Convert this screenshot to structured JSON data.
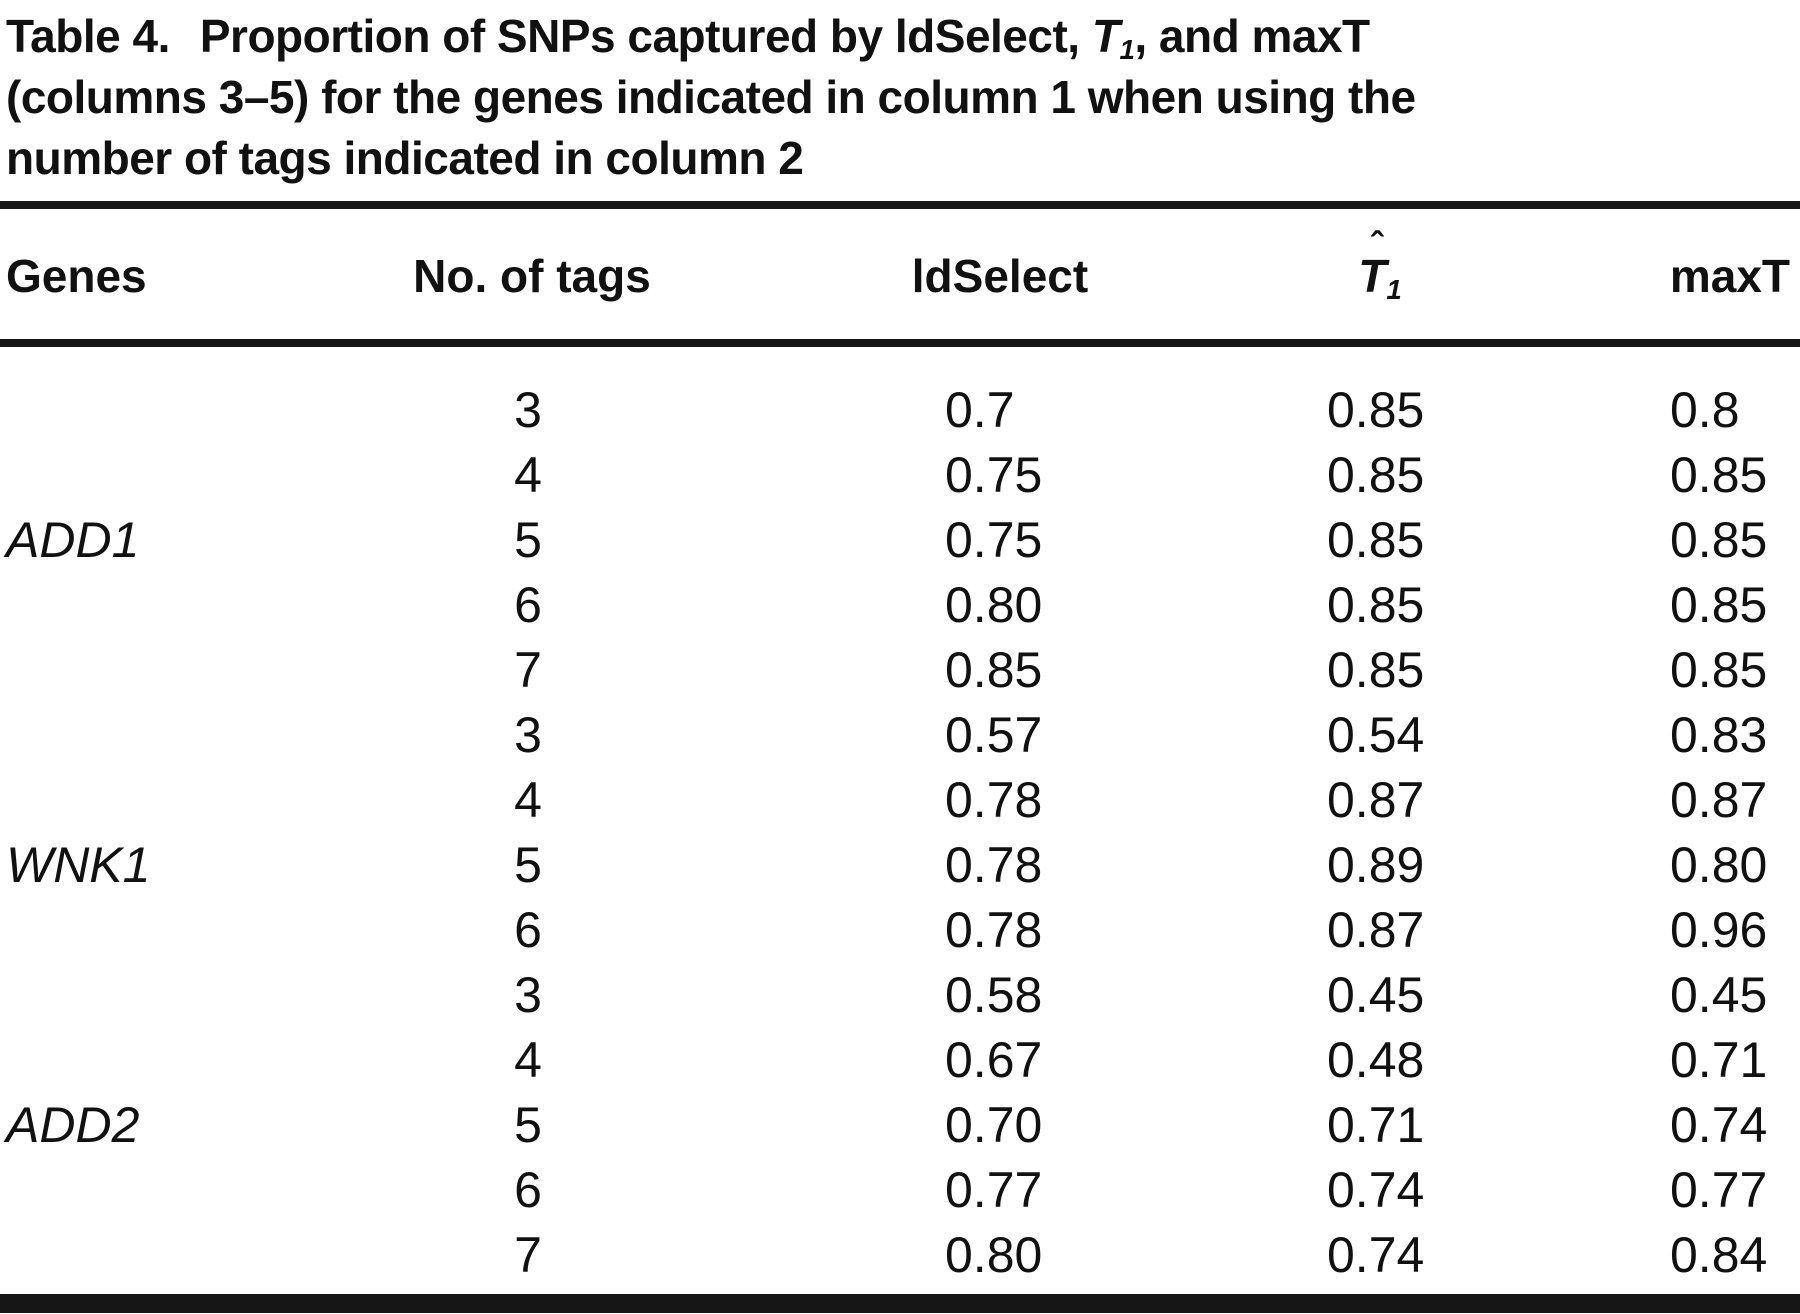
{
  "title": {
    "label": "Table 4.",
    "line1_pre": "Proportion of SNPs captured by ldSelect, ",
    "t1": {
      "hat": "ˆ",
      "base": "T",
      "sub": "1"
    },
    "line1_post": ", and maxT",
    "line2": "(columns 3–5) for the genes indicated in column 1 when using the",
    "line3": "number of tags indicated in column 2"
  },
  "table": {
    "headers": {
      "genes": "Genes",
      "tags": "No. of tags",
      "ldselect": "ldSelect",
      "t1": {
        "hat": "ˆ",
        "base": "T",
        "sub": "1"
      },
      "maxt": "maxT"
    },
    "groups": [
      {
        "gene": "ADD1",
        "gene_label_row": 2,
        "rows": [
          [
            "3",
            "0.7",
            "0.85",
            "0.8"
          ],
          [
            "4",
            "0.75",
            "0.85",
            "0.85"
          ],
          [
            "5",
            "0.75",
            "0.85",
            "0.85"
          ],
          [
            "6",
            "0.80",
            "0.85",
            "0.85"
          ],
          [
            "7",
            "0.85",
            "0.85",
            "0.85"
          ]
        ]
      },
      {
        "gene": "WNK1",
        "gene_label_row": 2,
        "rows": [
          [
            "3",
            "0.57",
            "0.54",
            "0.83"
          ],
          [
            "4",
            "0.78",
            "0.87",
            "0.87"
          ],
          [
            "5",
            "0.78",
            "0.89",
            "0.80"
          ],
          [
            "6",
            "0.78",
            "0.87",
            "0.96"
          ]
        ]
      },
      {
        "gene": "ADD2",
        "gene_label_row": 2,
        "rows": [
          [
            "3",
            "0.58",
            "0.45",
            "0.45"
          ],
          [
            "4",
            "0.67",
            "0.48",
            "0.71"
          ],
          [
            "5",
            "0.70",
            "0.71",
            "0.74"
          ],
          [
            "6",
            "0.77",
            "0.74",
            "0.77"
          ],
          [
            "7",
            "0.80",
            "0.74",
            "0.84"
          ]
        ]
      }
    ]
  },
  "colors": {
    "text": "#111111",
    "rule": "#161616",
    "background": "#ffffff"
  }
}
